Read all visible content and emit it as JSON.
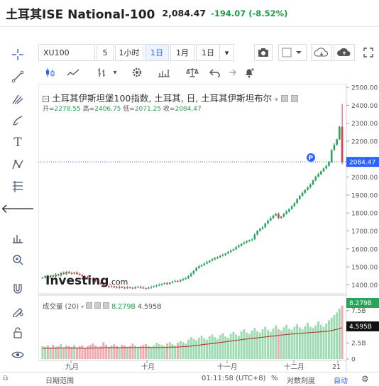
{
  "header": {
    "title": "土耳其ISE National-100",
    "price": "2,084.47",
    "change": "-194.07 (-8.52%)"
  },
  "toolbar": {
    "symbol": "XU100",
    "interval_num": "5",
    "hour": "1小时",
    "day": "1日",
    "month": "1月",
    "day2": "1日"
  },
  "legend": {
    "title": "土耳其伊斯坦堡100指数, 土耳其, 日, 土耳其伊斯坦布尔",
    "open_label": "开=",
    "open": "2278.55",
    "high_label": "高=",
    "high": "2406.75",
    "low_label": "低=",
    "low": "2071.25",
    "close_label": "收=",
    "close": "2084.47"
  },
  "volume": {
    "label": "成交量 (20)",
    "v1": "8.279B",
    "v2": "4.595B"
  },
  "watermark": {
    "brand": "Investing",
    "suffix": ".com"
  },
  "price_marker": {
    "label": "P"
  },
  "bottom": {
    "range_label": "日期范围",
    "time": "01:11:58 (UTC+8)",
    "percent": "%",
    "log": "对数刻度",
    "auto": "自动"
  },
  "chart_data": {
    "type": "candlestick",
    "price_axis": {
      "ticks": [
        "2500.00",
        "2400.00",
        "2300.00",
        "2200.00",
        "2100.00",
        "2000.00",
        "1900.00",
        "1800.00",
        "1700.00",
        "1600.00",
        "1500.00",
        "1400.00"
      ],
      "ylim": [
        1350,
        2520
      ],
      "current": "2084.47"
    },
    "volume_axis": {
      "ticks": [
        "7.5B",
        "5B",
        "2.5B",
        "0"
      ],
      "current_labels": [
        "8.279B",
        "4.595B"
      ]
    },
    "x_ticks": [
      "九月",
      "十月",
      "十一月",
      "十二月",
      "21"
    ],
    "closes": [
      1440,
      1448,
      1441,
      1452,
      1445,
      1458,
      1452,
      1466,
      1460,
      1472,
      1465,
      1462,
      1469,
      1460,
      1455,
      1448,
      1442,
      1436,
      1430,
      1425,
      1418,
      1412,
      1405,
      1398,
      1393,
      1388,
      1392,
      1387,
      1383,
      1389,
      1384,
      1381,
      1386,
      1383,
      1380,
      1385,
      1389,
      1384,
      1381,
      1379,
      1384,
      1388,
      1392,
      1396,
      1400,
      1405,
      1409,
      1404,
      1412,
      1417,
      1421,
      1418,
      1426,
      1432,
      1437,
      1448,
      1462,
      1478,
      1494,
      1503,
      1510,
      1518,
      1526,
      1534,
      1542,
      1548,
      1554,
      1561,
      1566,
      1574,
      1583,
      1590,
      1598,
      1610,
      1618,
      1628,
      1636,
      1642,
      1648,
      1653,
      1680,
      1700,
      1712,
      1720,
      1742,
      1758,
      1772,
      1786,
      1795,
      1772,
      1780,
      1795,
      1808,
      1822,
      1838,
      1855,
      1878,
      1895,
      1912,
      1928,
      1942,
      1958,
      1982,
      2002,
      2016,
      2032,
      2048,
      2062,
      2085,
      2150,
      2180,
      2210,
      2280,
      2084.47
    ],
    "volumes": [
      2.0,
      1.9,
      2.1,
      1.8,
      2.2,
      1.9,
      2.0,
      2.3,
      1.8,
      2.1,
      2.0,
      1.9,
      2.2,
      1.8,
      2.0,
      2.1,
      1.7,
      2.0,
      2.2,
      2.4,
      2.1,
      1.9,
      2.0,
      2.6,
      2.2,
      1.9,
      2.1,
      2.3,
      2.0,
      1.8,
      2.2,
      2.1,
      1.9,
      2.0,
      2.4,
      2.1,
      1.8,
      2.0,
      2.2,
      2.3,
      2.0,
      1.9,
      2.1,
      2.5,
      2.3,
      2.2,
      2.0,
      2.4,
      2.6,
      2.3,
      2.1,
      2.5,
      2.8,
      2.6,
      2.4,
      3.0,
      3.4,
      3.1,
      2.9,
      3.3,
      3.6,
      3.2,
      3.0,
      3.5,
      3.8,
      3.4,
      3.1,
      3.7,
      4.0,
      3.5,
      3.3,
      3.9,
      4.2,
      3.8,
      3.6,
      4.3,
      4.6,
      4.1,
      3.9,
      4.4,
      4.8,
      4.3,
      4.1,
      4.6,
      5.0,
      4.5,
      4.2,
      4.7,
      5.2,
      4.6,
      4.4,
      4.9,
      5.3,
      4.7,
      4.5,
      5.0,
      5.4,
      4.9,
      4.6,
      5.1,
      5.6,
      5.0,
      4.8,
      5.2,
      5.8,
      5.3,
      5.0,
      5.5,
      6.0,
      6.4,
      6.8,
      7.2,
      7.8,
      8.279
    ]
  }
}
